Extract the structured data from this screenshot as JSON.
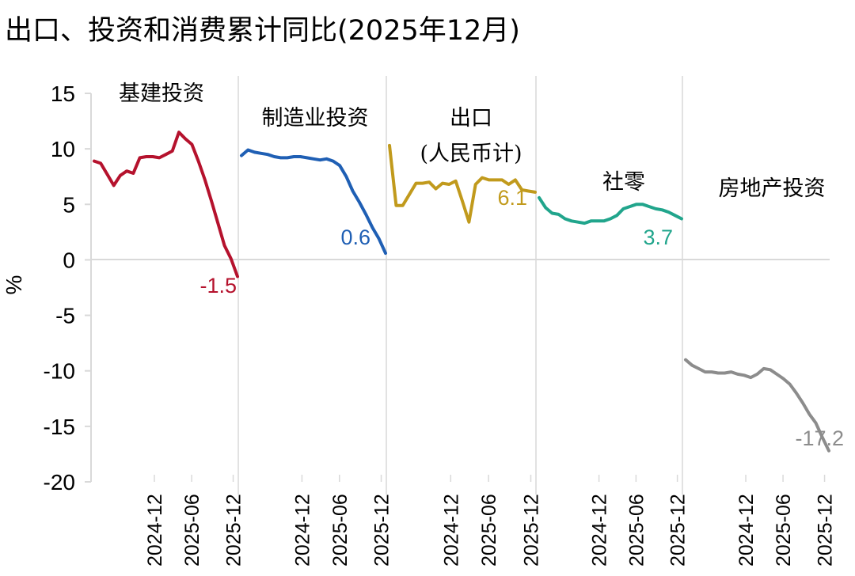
{
  "chart_data": {
    "type": "line",
    "title": "出口、投资和消费累计同比(2025年12月)",
    "ylabel": "%",
    "ylim": [
      -20,
      15
    ],
    "yticks": [
      15,
      10,
      5,
      0,
      -5,
      -10,
      -15,
      -20
    ],
    "grid": false,
    "legend": "none",
    "panels": [
      {
        "name": "基建投资",
        "color": "#b5122d",
        "x_ticks": [
          "2024-12",
          "2025-06",
          "2025-12"
        ],
        "end_label": "-1.5",
        "values": [
          8.9,
          8.7,
          7.7,
          6.7,
          7.6,
          8.0,
          7.8,
          9.2,
          9.3,
          9.3,
          9.2,
          9.5,
          9.8,
          11.5,
          10.9,
          10.4,
          8.9,
          7.2,
          5.3,
          3.3,
          1.3,
          0.1,
          -1.5
        ]
      },
      {
        "name": "制造业投资",
        "color": "#1f5fb4",
        "x_ticks": [
          "2024-12",
          "2025-06",
          "2025-12"
        ],
        "end_label": "0.6",
        "values": [
          9.4,
          9.9,
          9.7,
          9.6,
          9.5,
          9.3,
          9.2,
          9.2,
          9.3,
          9.3,
          9.2,
          9.1,
          9.0,
          9.1,
          8.9,
          8.5,
          7.5,
          6.2,
          5.2,
          4.1,
          2.9,
          1.9,
          0.6
        ]
      },
      {
        "name": "出口",
        "sublabel": "(人民币计)",
        "color": "#c19a1c",
        "x_ticks": [
          "2024-12",
          "2025-06",
          "2025-12"
        ],
        "end_label": "6.1",
        "values": [
          10.3,
          4.9,
          4.9,
          5.9,
          6.9,
          6.9,
          7.0,
          6.4,
          6.9,
          6.8,
          7.1,
          5.3,
          3.4,
          6.8,
          7.4,
          7.2,
          7.2,
          7.2,
          6.8,
          7.2,
          6.3,
          6.2,
          6.1
        ]
      },
      {
        "name": "社零",
        "color": "#21a58c",
        "x_ticks": [
          "2024-12",
          "2025-06",
          "2025-12"
        ],
        "end_label": "3.7",
        "values": [
          5.6,
          4.7,
          4.2,
          4.1,
          3.7,
          3.5,
          3.4,
          3.3,
          3.5,
          3.5,
          3.5,
          3.7,
          4.0,
          4.6,
          4.8,
          5.0,
          5.0,
          4.8,
          4.6,
          4.5,
          4.3,
          4.0,
          3.7
        ]
      },
      {
        "name": "房地产投资",
        "color": "#8c8c8c",
        "x_ticks": [
          "2024-12",
          "2025-06",
          "2025-12"
        ],
        "end_label": "-17.2",
        "values": [
          -9.0,
          -9.5,
          -9.8,
          -10.1,
          -10.1,
          -10.2,
          -10.2,
          -10.1,
          -10.3,
          -10.4,
          -10.6,
          -10.3,
          -9.8,
          -9.9,
          -10.3,
          -10.7,
          -11.2,
          -12.0,
          -12.9,
          -13.9,
          -14.7,
          -16.0,
          -17.2
        ]
      }
    ]
  }
}
